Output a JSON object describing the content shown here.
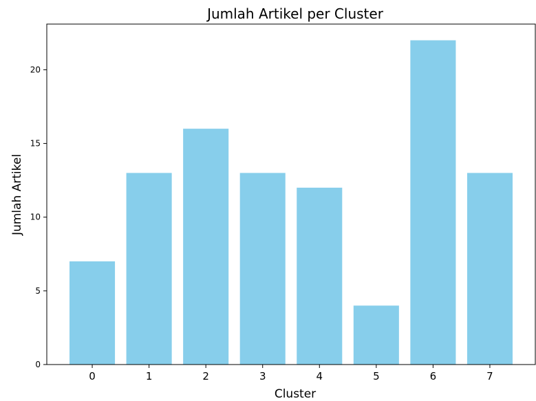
{
  "chart_data": {
    "type": "bar",
    "title": "Jumlah Artikel per Cluster",
    "xlabel": "Cluster",
    "ylabel": "Jumlah Artikel",
    "categories": [
      "0",
      "1",
      "2",
      "3",
      "4",
      "5",
      "6",
      "7"
    ],
    "values": [
      7,
      13,
      16,
      13,
      12,
      4,
      22,
      13
    ],
    "ylim": [
      0,
      23.1
    ],
    "yticks": [
      0,
      5,
      10,
      15,
      20
    ],
    "bar_color": "#87CEEB",
    "grid": false,
    "legend": "none"
  }
}
